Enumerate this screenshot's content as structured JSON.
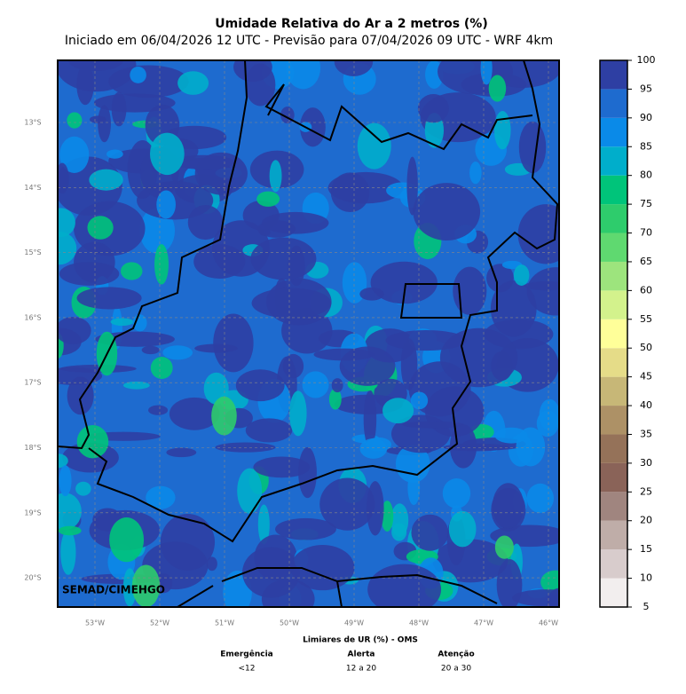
{
  "title": "Umidade Relativa do Ar a 2 metros (%)",
  "subtitle": "Iniciado em 06/04/2026 12 UTC - Previsão para 07/04/2026 09 UTC - WRF 4km",
  "map": {
    "credit": "SEMAD/CIMEHGO",
    "lat_labels": [
      "13°S",
      "14°S",
      "15°S",
      "16°S",
      "17°S",
      "18°S",
      "19°S",
      "20°S"
    ],
    "lon_labels": [
      "53°W",
      "52°W",
      "51°W",
      "50°W",
      "49°W",
      "48°W",
      "47°W",
      "46°W"
    ]
  },
  "colorbar": {
    "ticks": [
      5,
      10,
      15,
      20,
      25,
      30,
      35,
      40,
      45,
      50,
      55,
      60,
      65,
      70,
      75,
      80,
      85,
      90,
      95,
      100
    ],
    "colors": [
      "#f2eeee",
      "#d8cccc",
      "#bfada8",
      "#a0857f",
      "#8a6358",
      "#957259",
      "#ad9166",
      "#c7b777",
      "#e5dc88",
      "#ffff99",
      "#d3f28c",
      "#9de47d",
      "#5fd970",
      "#2ecc6c",
      "#00c47a",
      "#00aecb",
      "#0a8ae8",
      "#1e6bcf",
      "#2e3fa3"
    ]
  },
  "thresholds": {
    "title": "Limiares de UR (%) - OMS",
    "columns": [
      {
        "name": "Emergência",
        "range": "<12"
      },
      {
        "name": "Alerta",
        "range": "12 a 20"
      },
      {
        "name": "Atenção",
        "range": "20 a 30"
      }
    ]
  }
}
